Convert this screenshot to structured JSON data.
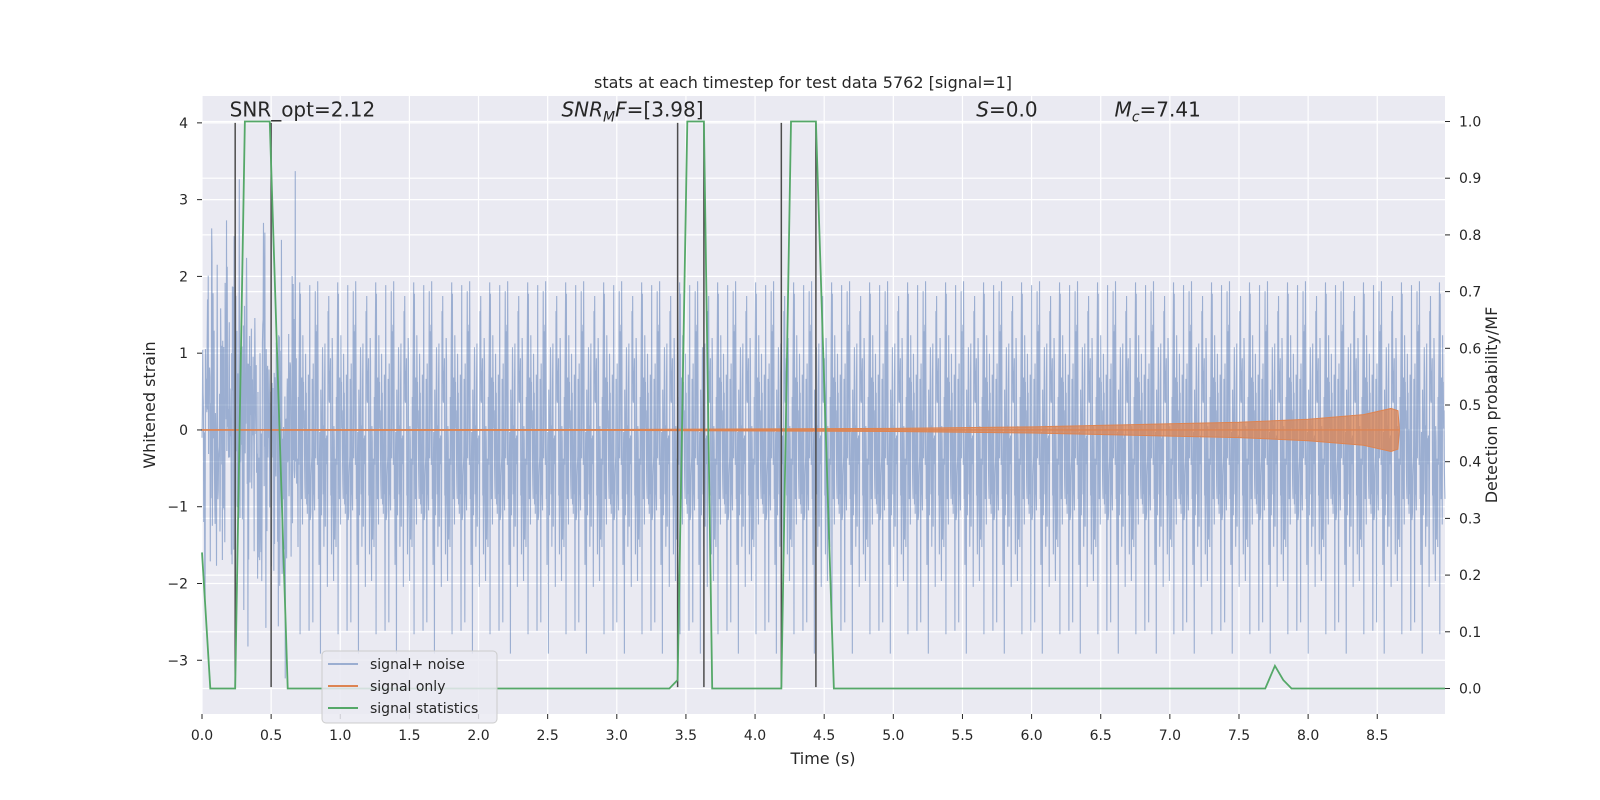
{
  "chart_data": {
    "type": "line",
    "title": "stats at each timestep for test data 5762 [signal=1]",
    "xlabel": "Time (s)",
    "ylabel": "Whitened strain",
    "ylabel_right": "Detection probability/MF",
    "xlim": [
      0,
      8.99
    ],
    "ylim": [
      -3.7,
      4.35
    ],
    "ylim_right": [
      -0.045,
      1.045
    ],
    "xticks": [
      0.0,
      0.5,
      1.0,
      1.5,
      2.0,
      2.5,
      3.0,
      3.5,
      4.0,
      4.5,
      5.0,
      5.5,
      6.0,
      6.5,
      7.0,
      7.5,
      8.0,
      8.5
    ],
    "xtick_labels": [
      "0.0",
      "0.5",
      "1.0",
      "1.5",
      "2.0",
      "2.5",
      "3.0",
      "3.5",
      "4.0",
      "4.5",
      "5.0",
      "5.5",
      "6.0",
      "6.5",
      "7.0",
      "7.5",
      "8.0",
      "8.5"
    ],
    "yticks": [
      -3,
      -2,
      -1,
      0,
      1,
      2,
      3,
      4
    ],
    "ytick_labels": [
      "−3",
      "−2",
      "−1",
      "0",
      "1",
      "2",
      "3",
      "4"
    ],
    "yticks_right": [
      0.0,
      0.1,
      0.2,
      0.3,
      0.4,
      0.5,
      0.6,
      0.7,
      0.8,
      0.9,
      1.0
    ],
    "ytick_labels_right": [
      "0.0",
      "0.1",
      "0.2",
      "0.3",
      "0.4",
      "0.5",
      "0.6",
      "0.7",
      "0.8",
      "0.9",
      "1.0"
    ],
    "grid": true,
    "legend_position": "lower-left",
    "annotations": [
      {
        "parts": [
          {
            "t": "SNR_opt=2.12"
          }
        ],
        "x": 0.2,
        "y": 4.08
      },
      {
        "parts": [
          {
            "t": "SNR",
            "i": true
          },
          {
            "t": "M",
            "i": true,
            "sub": true
          },
          {
            "t": "F",
            "i": true
          },
          {
            "t": "=[3.98]"
          }
        ],
        "x": 2.6,
        "y": 4.08
      },
      {
        "parts": [
          {
            "t": "S",
            "i": true
          },
          {
            "t": "=0.0"
          }
        ],
        "x": 5.6,
        "y": 4.08
      },
      {
        "parts": [
          {
            "t": "M",
            "i": true
          },
          {
            "t": "c",
            "i": true,
            "sub": true
          },
          {
            "t": "=7.41"
          }
        ],
        "x": 6.6,
        "y": 4.08
      }
    ],
    "series": [
      {
        "name": "signal+ noise",
        "color": "#4c72b0",
        "alpha": 0.5,
        "style": "dense noise",
        "axis": "left",
        "x_range": [
          0,
          8.99
        ],
        "y_range": [
          -3.35,
          4.0
        ]
      },
      {
        "name": "signal only",
        "color": "#dd8452",
        "axis": "left",
        "envelope": [
          {
            "x": 0.0,
            "y": 0.004
          },
          {
            "x": 3.0,
            "y": 0.006
          },
          {
            "x": 5.0,
            "y": 0.02
          },
          {
            "x": 6.0,
            "y": 0.04
          },
          {
            "x": 7.0,
            "y": 0.08
          },
          {
            "x": 7.5,
            "y": 0.1
          },
          {
            "x": 8.0,
            "y": 0.14
          },
          {
            "x": 8.4,
            "y": 0.2
          },
          {
            "x": 8.6,
            "y": 0.28
          },
          {
            "x": 8.65,
            "y": 0.25
          },
          {
            "x": 8.66,
            "y": 0.0
          }
        ]
      },
      {
        "name": "signal statistics",
        "color": "#55a868",
        "axis": "right",
        "points": [
          [
            0.0,
            0.24
          ],
          [
            0.06,
            0.0
          ],
          [
            0.24,
            0.0
          ],
          [
            0.31,
            1.0
          ],
          [
            0.49,
            1.0
          ],
          [
            0.62,
            0.0
          ],
          [
            3.38,
            0.0
          ],
          [
            3.44,
            0.015
          ],
          [
            3.51,
            1.0
          ],
          [
            3.63,
            1.0
          ],
          [
            3.69,
            0.0
          ],
          [
            4.19,
            0.0
          ],
          [
            4.26,
            1.0
          ],
          [
            4.44,
            1.0
          ],
          [
            4.57,
            0.0
          ],
          [
            7.69,
            0.0
          ],
          [
            7.76,
            0.04
          ],
          [
            7.82,
            0.015
          ],
          [
            7.88,
            0.0
          ],
          [
            8.99,
            0.0
          ]
        ]
      }
    ],
    "markers": [
      {
        "x": 0.24,
        "y1": 4.0,
        "y2": -3.35
      },
      {
        "x": 0.5,
        "y1": 4.0,
        "y2": -3.35
      },
      {
        "x": 3.44,
        "y1": 4.0,
        "y2": -3.35
      },
      {
        "x": 3.63,
        "y1": 4.0,
        "y2": -3.35
      },
      {
        "x": 4.19,
        "y1": 4.0,
        "y2": -3.35
      },
      {
        "x": 4.44,
        "y1": 4.0,
        "y2": -3.35
      }
    ]
  }
}
